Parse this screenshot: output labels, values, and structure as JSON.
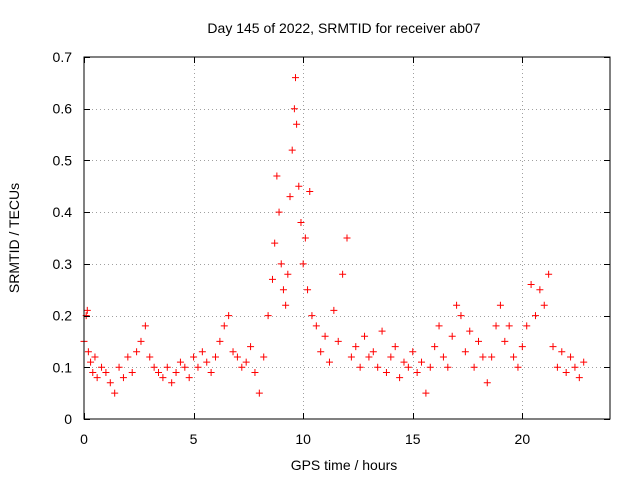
{
  "chart_data": {
    "type": "scatter",
    "title": "Day 145 of 2022, SRMTID for receiver ab07",
    "xlabel": "GPS time / hours",
    "ylabel": "SRMTID / TECUs",
    "xlim": [
      0,
      24
    ],
    "ylim": [
      0,
      0.7
    ],
    "xticks": [
      0,
      5,
      10,
      15,
      20
    ],
    "xtick_labels": [
      "0",
      "5",
      "10",
      "15",
      "20"
    ],
    "yticks": [
      0,
      0.1,
      0.2,
      0.3,
      0.4,
      0.5,
      0.6,
      0.7
    ],
    "ytick_labels": [
      "0",
      "0.1",
      "0.2",
      "0.3",
      "0.4",
      "0.5",
      "0.6",
      "0.7"
    ],
    "grid": true,
    "marker": "+",
    "series": [
      {
        "name": "SRMTID",
        "color": "#ff0000",
        "points": [
          {
            "x": 0.0,
            "y": 0.15
          },
          {
            "x": 0.1,
            "y": 0.2
          },
          {
            "x": 0.15,
            "y": 0.21
          },
          {
            "x": 0.2,
            "y": 0.13
          },
          {
            "x": 0.3,
            "y": 0.11
          },
          {
            "x": 0.4,
            "y": 0.09
          },
          {
            "x": 0.5,
            "y": 0.12
          },
          {
            "x": 0.6,
            "y": 0.08
          },
          {
            "x": 0.8,
            "y": 0.1
          },
          {
            "x": 1.0,
            "y": 0.09
          },
          {
            "x": 1.2,
            "y": 0.07
          },
          {
            "x": 1.4,
            "y": 0.05
          },
          {
            "x": 1.6,
            "y": 0.1
          },
          {
            "x": 1.8,
            "y": 0.08
          },
          {
            "x": 2.0,
            "y": 0.12
          },
          {
            "x": 2.2,
            "y": 0.09
          },
          {
            "x": 2.4,
            "y": 0.13
          },
          {
            "x": 2.6,
            "y": 0.15
          },
          {
            "x": 2.8,
            "y": 0.18
          },
          {
            "x": 3.0,
            "y": 0.12
          },
          {
            "x": 3.2,
            "y": 0.1
          },
          {
            "x": 3.4,
            "y": 0.09
          },
          {
            "x": 3.6,
            "y": 0.08
          },
          {
            "x": 3.8,
            "y": 0.1
          },
          {
            "x": 4.0,
            "y": 0.07
          },
          {
            "x": 4.2,
            "y": 0.09
          },
          {
            "x": 4.4,
            "y": 0.11
          },
          {
            "x": 4.6,
            "y": 0.1
          },
          {
            "x": 4.8,
            "y": 0.08
          },
          {
            "x": 5.0,
            "y": 0.12
          },
          {
            "x": 5.2,
            "y": 0.1
          },
          {
            "x": 5.4,
            "y": 0.13
          },
          {
            "x": 5.6,
            "y": 0.11
          },
          {
            "x": 5.8,
            "y": 0.09
          },
          {
            "x": 6.0,
            "y": 0.12
          },
          {
            "x": 6.2,
            "y": 0.15
          },
          {
            "x": 6.4,
            "y": 0.18
          },
          {
            "x": 6.6,
            "y": 0.2
          },
          {
            "x": 6.8,
            "y": 0.13
          },
          {
            "x": 7.0,
            "y": 0.12
          },
          {
            "x": 7.2,
            "y": 0.1
          },
          {
            "x": 7.4,
            "y": 0.11
          },
          {
            "x": 7.6,
            "y": 0.14
          },
          {
            "x": 7.8,
            "y": 0.09
          },
          {
            "x": 8.0,
            "y": 0.05
          },
          {
            "x": 8.2,
            "y": 0.12
          },
          {
            "x": 8.4,
            "y": 0.2
          },
          {
            "x": 8.6,
            "y": 0.27
          },
          {
            "x": 8.7,
            "y": 0.34
          },
          {
            "x": 8.8,
            "y": 0.47
          },
          {
            "x": 8.9,
            "y": 0.4
          },
          {
            "x": 9.0,
            "y": 0.3
          },
          {
            "x": 9.1,
            "y": 0.25
          },
          {
            "x": 9.2,
            "y": 0.22
          },
          {
            "x": 9.3,
            "y": 0.28
          },
          {
            "x": 9.4,
            "y": 0.43
          },
          {
            "x": 9.5,
            "y": 0.52
          },
          {
            "x": 9.6,
            "y": 0.6
          },
          {
            "x": 9.65,
            "y": 0.66
          },
          {
            "x": 9.7,
            "y": 0.57
          },
          {
            "x": 9.8,
            "y": 0.45
          },
          {
            "x": 9.9,
            "y": 0.38
          },
          {
            "x": 10.0,
            "y": 0.3
          },
          {
            "x": 10.1,
            "y": 0.35
          },
          {
            "x": 10.2,
            "y": 0.25
          },
          {
            "x": 10.3,
            "y": 0.44
          },
          {
            "x": 10.4,
            "y": 0.2
          },
          {
            "x": 10.6,
            "y": 0.18
          },
          {
            "x": 10.8,
            "y": 0.13
          },
          {
            "x": 11.0,
            "y": 0.16
          },
          {
            "x": 11.2,
            "y": 0.11
          },
          {
            "x": 11.4,
            "y": 0.21
          },
          {
            "x": 11.6,
            "y": 0.15
          },
          {
            "x": 11.8,
            "y": 0.28
          },
          {
            "x": 12.0,
            "y": 0.35
          },
          {
            "x": 12.2,
            "y": 0.12
          },
          {
            "x": 12.4,
            "y": 0.14
          },
          {
            "x": 12.6,
            "y": 0.1
          },
          {
            "x": 12.8,
            "y": 0.16
          },
          {
            "x": 13.0,
            "y": 0.12
          },
          {
            "x": 13.2,
            "y": 0.13
          },
          {
            "x": 13.4,
            "y": 0.1
          },
          {
            "x": 13.6,
            "y": 0.17
          },
          {
            "x": 13.8,
            "y": 0.09
          },
          {
            "x": 14.0,
            "y": 0.12
          },
          {
            "x": 14.2,
            "y": 0.14
          },
          {
            "x": 14.4,
            "y": 0.08
          },
          {
            "x": 14.6,
            "y": 0.11
          },
          {
            "x": 14.8,
            "y": 0.1
          },
          {
            "x": 15.0,
            "y": 0.13
          },
          {
            "x": 15.2,
            "y": 0.09
          },
          {
            "x": 15.4,
            "y": 0.11
          },
          {
            "x": 15.6,
            "y": 0.05
          },
          {
            "x": 15.8,
            "y": 0.1
          },
          {
            "x": 16.0,
            "y": 0.14
          },
          {
            "x": 16.2,
            "y": 0.18
          },
          {
            "x": 16.4,
            "y": 0.12
          },
          {
            "x": 16.6,
            "y": 0.1
          },
          {
            "x": 16.8,
            "y": 0.16
          },
          {
            "x": 17.0,
            "y": 0.22
          },
          {
            "x": 17.2,
            "y": 0.2
          },
          {
            "x": 17.4,
            "y": 0.13
          },
          {
            "x": 17.6,
            "y": 0.17
          },
          {
            "x": 17.8,
            "y": 0.1
          },
          {
            "x": 18.0,
            "y": 0.15
          },
          {
            "x": 18.2,
            "y": 0.12
          },
          {
            "x": 18.4,
            "y": 0.07
          },
          {
            "x": 18.6,
            "y": 0.12
          },
          {
            "x": 18.8,
            "y": 0.18
          },
          {
            "x": 19.0,
            "y": 0.22
          },
          {
            "x": 19.2,
            "y": 0.15
          },
          {
            "x": 19.4,
            "y": 0.18
          },
          {
            "x": 19.6,
            "y": 0.12
          },
          {
            "x": 19.8,
            "y": 0.1
          },
          {
            "x": 20.0,
            "y": 0.14
          },
          {
            "x": 20.2,
            "y": 0.18
          },
          {
            "x": 20.4,
            "y": 0.26
          },
          {
            "x": 20.6,
            "y": 0.2
          },
          {
            "x": 20.8,
            "y": 0.25
          },
          {
            "x": 21.0,
            "y": 0.22
          },
          {
            "x": 21.2,
            "y": 0.28
          },
          {
            "x": 21.4,
            "y": 0.14
          },
          {
            "x": 21.6,
            "y": 0.1
          },
          {
            "x": 21.8,
            "y": 0.13
          },
          {
            "x": 22.0,
            "y": 0.09
          },
          {
            "x": 22.2,
            "y": 0.12
          },
          {
            "x": 22.4,
            "y": 0.1
          },
          {
            "x": 22.6,
            "y": 0.08
          },
          {
            "x": 22.8,
            "y": 0.11
          }
        ]
      }
    ]
  }
}
